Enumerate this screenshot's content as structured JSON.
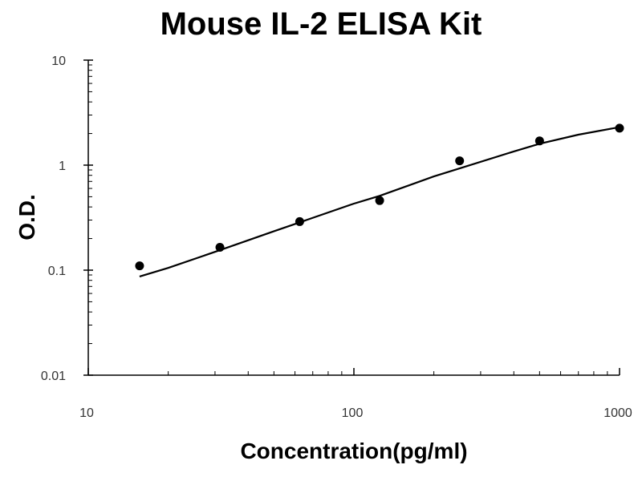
{
  "chart_data": {
    "type": "scatter",
    "title": "Mouse IL-2 ELISA Kit",
    "xlabel": "Concentration(pg/ml)",
    "ylabel": "O.D.",
    "xscale": "log",
    "yscale": "log",
    "xlim": [
      10,
      1000
    ],
    "ylim": [
      0.01,
      10
    ],
    "xticks": [
      "10",
      "100",
      "1000"
    ],
    "yticks": [
      "10",
      "1",
      "0.1",
      "0.01"
    ],
    "grid": false,
    "series": [
      {
        "kind": "points",
        "x": [
          15.6,
          31.3,
          62.5,
          125,
          250,
          500,
          1000
        ],
        "y": [
          0.11,
          0.165,
          0.29,
          0.46,
          1.1,
          1.7,
          2.25
        ]
      },
      {
        "kind": "fit-curve",
        "x": [
          15.6,
          20,
          31.3,
          50,
          62.5,
          100,
          125,
          200,
          250,
          400,
          500,
          700,
          1000
        ],
        "y": [
          0.087,
          0.105,
          0.155,
          0.235,
          0.285,
          0.43,
          0.51,
          0.78,
          0.93,
          1.35,
          1.6,
          1.95,
          2.3
        ]
      }
    ]
  }
}
